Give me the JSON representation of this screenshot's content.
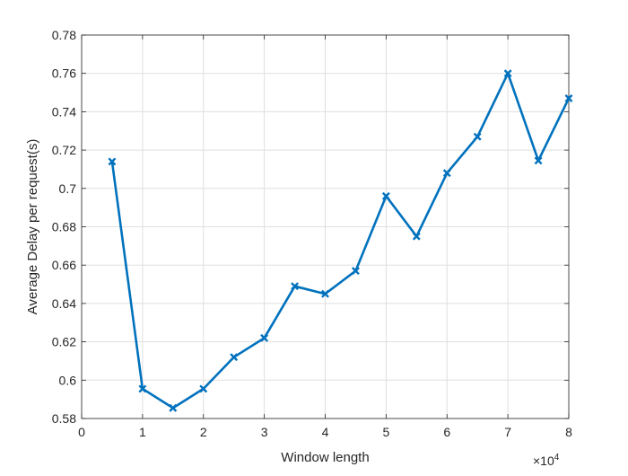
{
  "chart_data": {
    "type": "line",
    "title": "",
    "xlabel": "Window length",
    "ylabel": "Average Delay per request(s)",
    "x_exponent_base": "×10",
    "x_exponent_power": "4",
    "xlim": [
      0,
      80000
    ],
    "ylim": [
      0.58,
      0.78
    ],
    "xticks": [
      0,
      10000,
      20000,
      30000,
      40000,
      50000,
      60000,
      70000,
      80000
    ],
    "xtick_labels": [
      "0",
      "1",
      "2",
      "3",
      "4",
      "5",
      "6",
      "7",
      "8"
    ],
    "yticks": [
      0.58,
      0.6,
      0.62,
      0.64,
      0.66,
      0.68,
      0.7,
      0.72,
      0.74,
      0.76,
      0.78
    ],
    "ytick_labels": [
      "0.58",
      "0.6",
      "0.62",
      "0.64",
      "0.66",
      "0.68",
      "0.7",
      "0.72",
      "0.74",
      "0.76",
      "0.78"
    ],
    "grid": true,
    "series": [
      {
        "color": "#0072BD",
        "marker": "x",
        "x": [
          5000,
          10000,
          15000,
          20000,
          25000,
          30000,
          35000,
          40000,
          45000,
          50000,
          55000,
          60000,
          65000,
          70000,
          75000,
          80000
        ],
        "y": [
          0.714,
          0.5955,
          0.5855,
          0.5955,
          0.612,
          0.622,
          0.649,
          0.645,
          0.657,
          0.696,
          0.675,
          0.708,
          0.727,
          0.76,
          0.7145,
          0.747
        ]
      }
    ]
  }
}
